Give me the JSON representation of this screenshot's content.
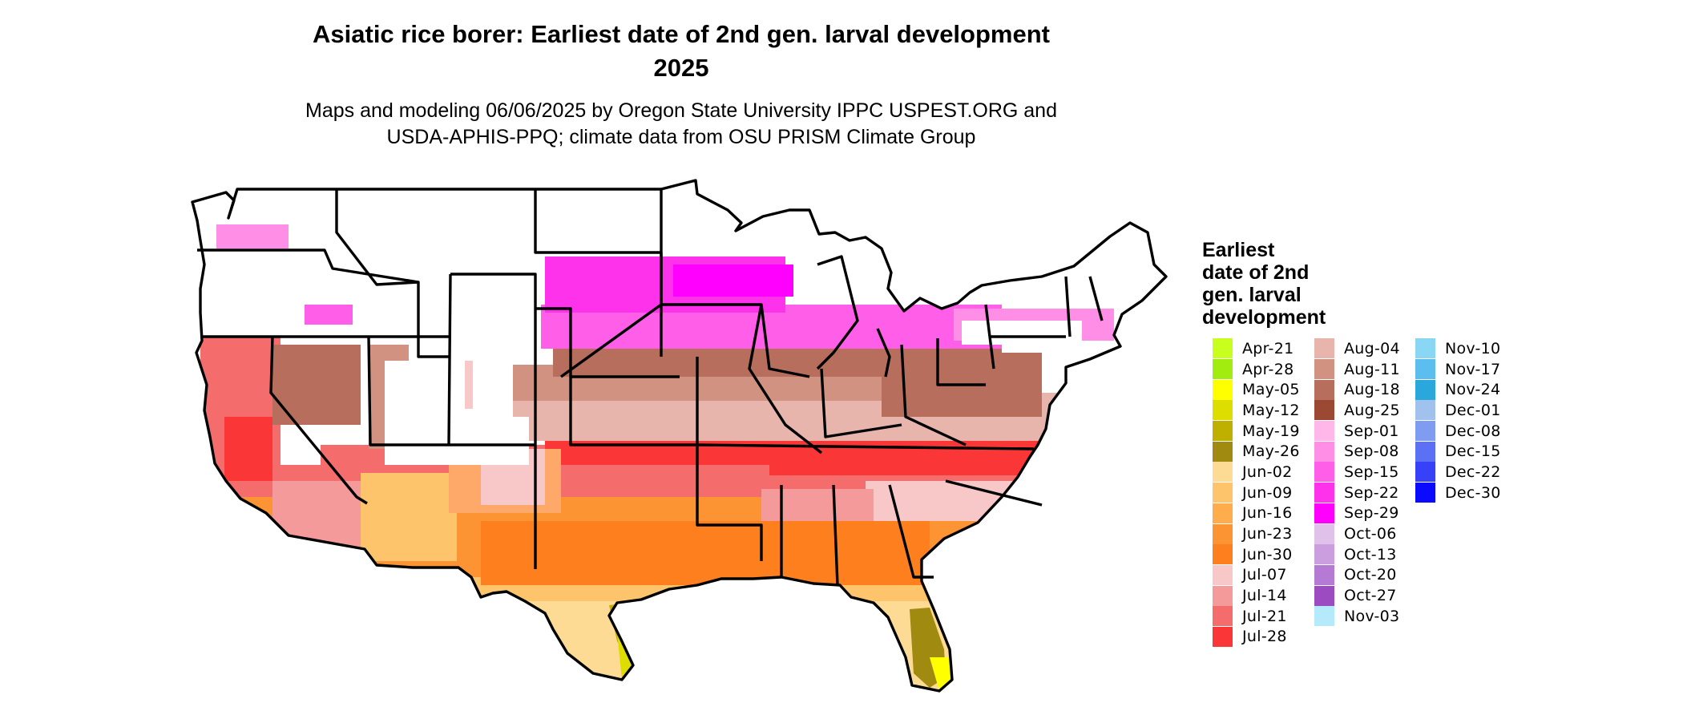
{
  "title_line1": "Asiatic rice borer: Earliest date of 2nd gen. larval development",
  "title_line2": "2025",
  "subtitle_line1": "Maps and modeling 06/06/2025 by Oregon State University IPPC USPEST.ORG and",
  "subtitle_line2": "USDA-APHIS-PPQ; climate data from OSU PRISM Climate Group",
  "legend": {
    "title_lines": [
      "Earliest",
      "date of 2nd",
      "gen. larval",
      "development"
    ],
    "items": [
      {
        "label": "Apr-21",
        "color": "#c8ff1f"
      },
      {
        "label": "Apr-28",
        "color": "#a3ec10"
      },
      {
        "label": "May-05",
        "color": "#ffff00"
      },
      {
        "label": "May-12",
        "color": "#dddd00"
      },
      {
        "label": "May-19",
        "color": "#bfb000"
      },
      {
        "label": "May-26",
        "color": "#a08a10"
      },
      {
        "label": "Jun-02",
        "color": "#fedb94"
      },
      {
        "label": "Jun-09",
        "color": "#fec46b"
      },
      {
        "label": "Jun-16",
        "color": "#feac4c"
      },
      {
        "label": "Jun-23",
        "color": "#fd9434"
      },
      {
        "label": "Jun-30",
        "color": "#fd7f1e"
      },
      {
        "label": "Jul-07",
        "color": "#f8c8c8"
      },
      {
        "label": "Jul-14",
        "color": "#f49a9a"
      },
      {
        "label": "Jul-21",
        "color": "#f46c6c"
      },
      {
        "label": "Jul-28",
        "color": "#fb3636"
      },
      {
        "label": "Aug-04",
        "color": "#e8b5ad"
      },
      {
        "label": "Aug-11",
        "color": "#d29282"
      },
      {
        "label": "Aug-18",
        "color": "#b86e5c"
      },
      {
        "label": "Aug-25",
        "color": "#9c4934"
      },
      {
        "label": "Sep-01",
        "color": "#ffb6e8"
      },
      {
        "label": "Sep-08",
        "color": "#ff8ee6"
      },
      {
        "label": "Sep-15",
        "color": "#ff5ee8"
      },
      {
        "label": "Sep-22",
        "color": "#ff32ec"
      },
      {
        "label": "Sep-29",
        "color": "#ff00ff"
      },
      {
        "label": "Oct-06",
        "color": "#dfc1ea"
      },
      {
        "label": "Oct-13",
        "color": "#cb9ee0"
      },
      {
        "label": "Oct-20",
        "color": "#b57bd4"
      },
      {
        "label": "Oct-27",
        "color": "#9c4cc0"
      },
      {
        "label": "Nov-03",
        "color": "#b4eafc"
      },
      {
        "label": "Nov-10",
        "color": "#8ad6f5"
      },
      {
        "label": "Nov-17",
        "color": "#5cbeee"
      },
      {
        "label": "Nov-24",
        "color": "#2aa8dc"
      },
      {
        "label": "Dec-01",
        "color": "#a2c2ee"
      },
      {
        "label": "Dec-08",
        "color": "#7f9cf0"
      },
      {
        "label": "Dec-15",
        "color": "#5b70f4"
      },
      {
        "label": "Dec-22",
        "color": "#3742f8"
      },
      {
        "label": "Dec-30",
        "color": "#0a0aff"
      }
    ]
  }
}
